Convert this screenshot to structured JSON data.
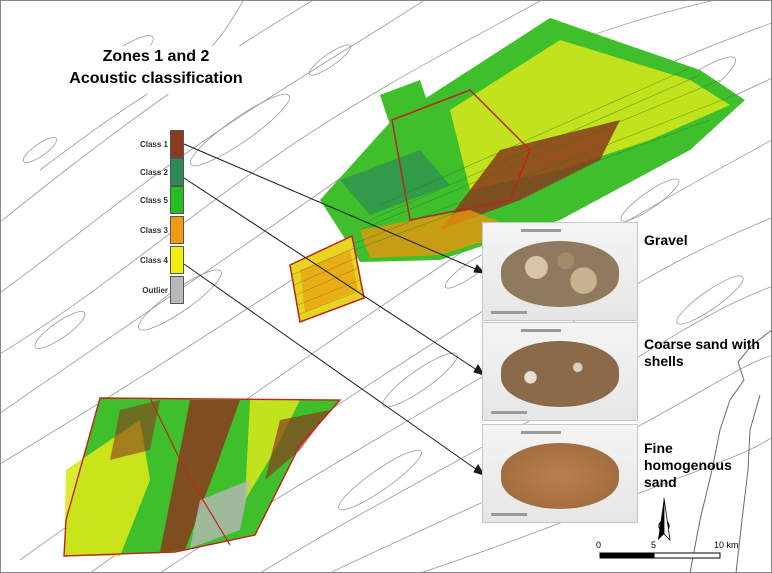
{
  "title": {
    "line1": "Zones 1 and 2",
    "line2": "Acoustic classification"
  },
  "legend": [
    {
      "label": "Class 1",
      "color": "#8b3a1e"
    },
    {
      "label": "Class 2",
      "color": "#2e8b57"
    },
    {
      "label": "Class 5",
      "color": "#22c022"
    },
    {
      "label": "Class 3",
      "color": "#f09a10"
    },
    {
      "label": "Class 4",
      "color": "#f0f010"
    },
    {
      "label": "Outlier",
      "color": "#b8b8b8"
    }
  ],
  "samples": [
    {
      "label": "Gravel",
      "color": "#b19c84"
    },
    {
      "label": "Coarse sand with shells",
      "color": "#9a7a58"
    },
    {
      "label": "Fine homogenous sand",
      "color": "#b07a48"
    }
  ],
  "scale_bar": {
    "ticks": [
      "0",
      "5",
      "10 km"
    ]
  },
  "north_arrow": {
    "icon": "north-arrow-icon"
  },
  "colors": {
    "contour": "#9a9a9a",
    "zone_outline": "#c0241c",
    "arrow": "#1a1a1a"
  }
}
